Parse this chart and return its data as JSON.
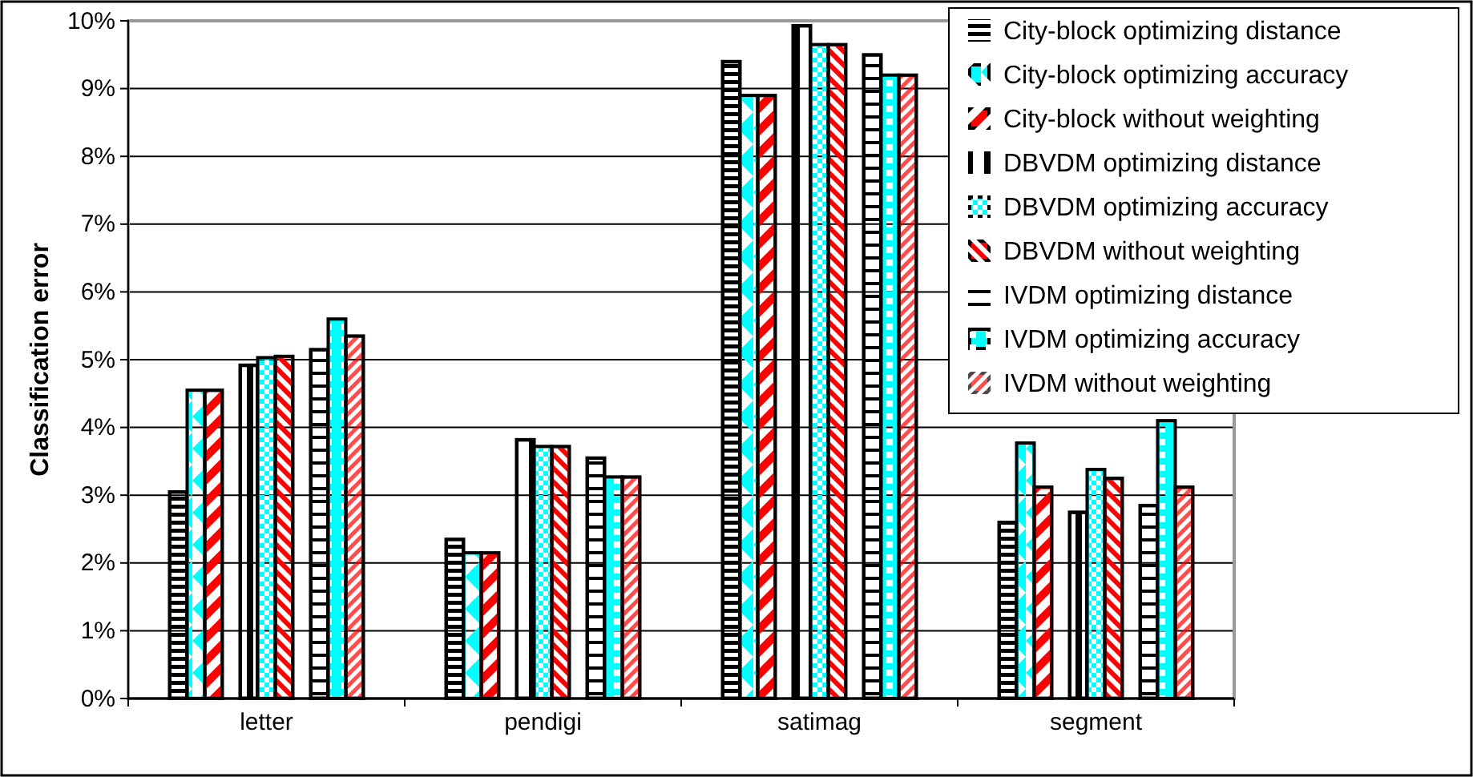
{
  "chart_data": {
    "type": "bar",
    "ylabel": "Classification error",
    "categories": [
      "letter",
      "pendigi",
      "satimag",
      "segment"
    ],
    "series": [
      {
        "name": "City-block optimizing distance",
        "color": "#000000",
        "values": [
          3.05,
          2.35,
          9.4,
          2.6
        ]
      },
      {
        "name": "City-block optimizing accuracy",
        "color": "#00ffff",
        "values": [
          4.55,
          2.15,
          8.9,
          3.77
        ]
      },
      {
        "name": "City-block without weighting",
        "color": "#ff0000",
        "values": [
          4.55,
          2.15,
          8.9,
          3.12
        ]
      },
      {
        "name": "DBVDM optimizing distance",
        "color": "#000000",
        "values": [
          4.92,
          3.82,
          9.93,
          2.75
        ]
      },
      {
        "name": "DBVDM optimizing accuracy",
        "color": "#00ffff",
        "values": [
          5.03,
          3.72,
          9.65,
          3.38
        ]
      },
      {
        "name": "DBVDM without weighting",
        "color": "#ff0000",
        "values": [
          5.05,
          3.72,
          9.65,
          3.25
        ]
      },
      {
        "name": "IVDM optimizing distance",
        "color": "#000000",
        "values": [
          5.15,
          3.55,
          9.5,
          2.85
        ]
      },
      {
        "name": "IVDM optimizing accuracy",
        "color": "#00ffff",
        "values": [
          5.6,
          3.27,
          9.2,
          4.1
        ]
      },
      {
        "name": "IVDM without weighting",
        "color": "#ff0000",
        "values": [
          5.35,
          3.27,
          9.2,
          3.12
        ]
      }
    ],
    "ylim": [
      0,
      10
    ],
    "yticks": [
      {
        "value": 0,
        "label": "0%"
      },
      {
        "value": 1,
        "label": "1%"
      },
      {
        "value": 2,
        "label": "2%"
      },
      {
        "value": 3,
        "label": "3%"
      },
      {
        "value": 4,
        "label": "4%"
      },
      {
        "value": 5,
        "label": "5%"
      },
      {
        "value": 6,
        "label": "6%"
      },
      {
        "value": 7,
        "label": "7%"
      },
      {
        "value": 8,
        "label": "8%"
      },
      {
        "value": 9,
        "label": "9%"
      },
      {
        "value": 10,
        "label": "10%"
      }
    ],
    "grid": "y",
    "legend": "top right"
  }
}
